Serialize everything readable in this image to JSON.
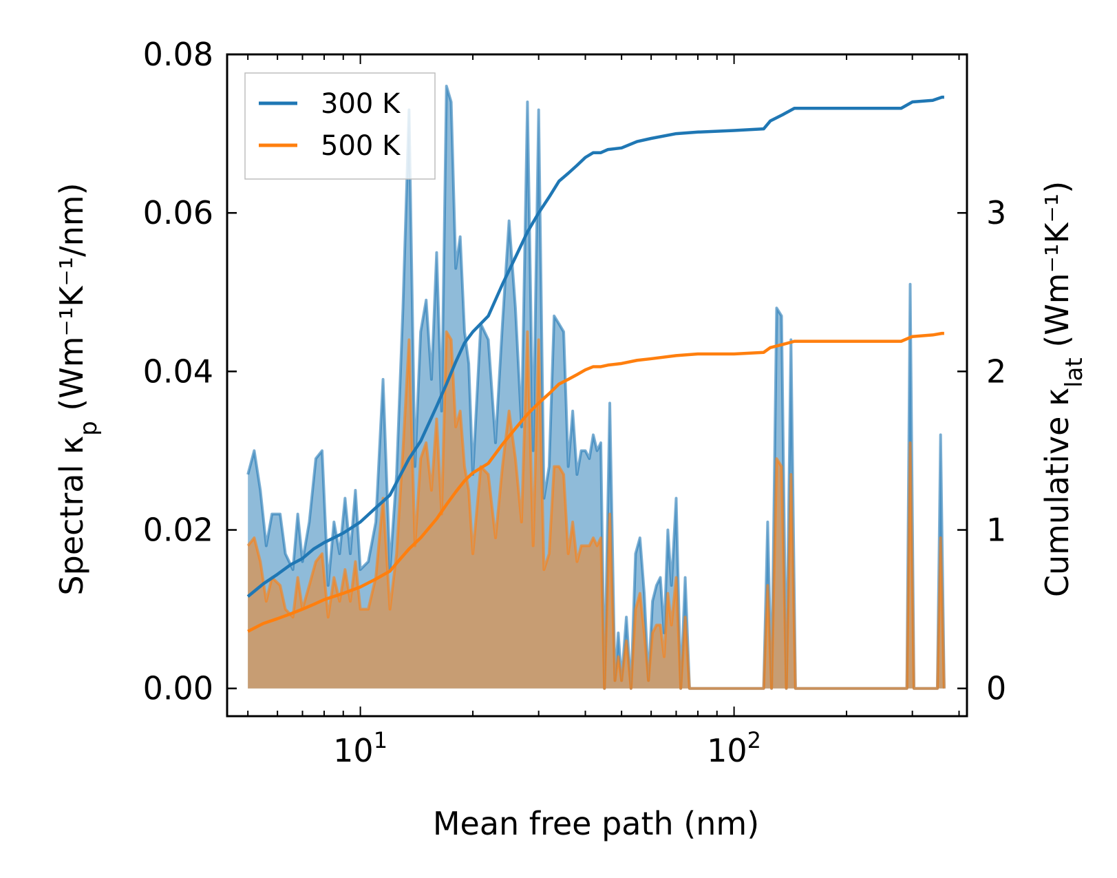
{
  "chart_data": {
    "type": "line",
    "xscale": "log",
    "xlabel": "Mean free path (nm)",
    "ylabel_left": {
      "prefix": "Spectral κ",
      "sub": "p",
      "suffix": " (Wm⁻¹K⁻¹/nm)"
    },
    "ylabel_right": {
      "prefix": "Cumulative κ",
      "sub": "lat",
      "suffix": " (Wm⁻¹K⁻¹)"
    },
    "xlim": [
      4.4,
      420
    ],
    "ylim_left": [
      -0.0035,
      0.08
    ],
    "ylim_right": [
      -0.175,
      4.0
    ],
    "xticks_major": [
      {
        "value": 10,
        "base": "10",
        "exp": "1"
      },
      {
        "value": 100,
        "base": "10",
        "exp": "2"
      }
    ],
    "yticks_left": [
      {
        "value": 0.0,
        "label": "0.00"
      },
      {
        "value": 0.02,
        "label": "0.02"
      },
      {
        "value": 0.04,
        "label": "0.04"
      },
      {
        "value": 0.06,
        "label": "0.06"
      },
      {
        "value": 0.08,
        "label": "0.08"
      }
    ],
    "yticks_right": [
      {
        "value": 0,
        "label": "0"
      },
      {
        "value": 1,
        "label": "1"
      },
      {
        "value": 2,
        "label": "2"
      },
      {
        "value": 3,
        "label": "3"
      }
    ],
    "legend": {
      "placement": "top-left",
      "entries": [
        "300 K",
        "500 K"
      ]
    },
    "colors": {
      "s300": "#1f77b4",
      "s500": "#ff7f0e",
      "fill300": "#1f77b4",
      "fill500": "#ff7f0e"
    },
    "spectral_series": [
      {
        "name": "300 K",
        "points": [
          [
            5.0,
            0.027
          ],
          [
            5.2,
            0.03
          ],
          [
            5.4,
            0.025
          ],
          [
            5.6,
            0.018
          ],
          [
            5.8,
            0.022
          ],
          [
            6.1,
            0.022
          ],
          [
            6.3,
            0.017
          ],
          [
            6.6,
            0.015
          ],
          [
            6.8,
            0.022
          ],
          [
            7.0,
            0.016
          ],
          [
            7.3,
            0.021
          ],
          [
            7.6,
            0.029
          ],
          [
            7.9,
            0.03
          ],
          [
            8.2,
            0.013
          ],
          [
            8.5,
            0.021
          ],
          [
            8.8,
            0.017
          ],
          [
            9.1,
            0.024
          ],
          [
            9.4,
            0.017
          ],
          [
            9.7,
            0.025
          ],
          [
            10.0,
            0.015
          ],
          [
            10.5,
            0.016
          ],
          [
            11.0,
            0.021
          ],
          [
            11.5,
            0.039
          ],
          [
            12.0,
            0.015
          ],
          [
            12.5,
            0.027
          ],
          [
            13.0,
            0.048
          ],
          [
            13.5,
            0.073
          ],
          [
            14.0,
            0.028
          ],
          [
            14.5,
            0.045
          ],
          [
            15.0,
            0.049
          ],
          [
            15.5,
            0.039
          ],
          [
            16.0,
            0.055
          ],
          [
            16.5,
            0.035
          ],
          [
            17.0,
            0.076
          ],
          [
            17.5,
            0.074
          ],
          [
            18.0,
            0.053
          ],
          [
            18.5,
            0.057
          ],
          [
            19.0,
            0.045
          ],
          [
            19.5,
            0.041
          ],
          [
            20.0,
            0.027
          ],
          [
            21.0,
            0.046
          ],
          [
            22.0,
            0.044
          ],
          [
            23.0,
            0.031
          ],
          [
            24.0,
            0.046
          ],
          [
            25.0,
            0.059
          ],
          [
            26.0,
            0.048
          ],
          [
            27.0,
            0.033
          ],
          [
            28.0,
            0.074
          ],
          [
            29.0,
            0.03
          ],
          [
            30.0,
            0.073
          ],
          [
            31.0,
            0.024
          ],
          [
            32.0,
            0.028
          ],
          [
            33.0,
            0.047
          ],
          [
            34.0,
            0.046
          ],
          [
            35.0,
            0.045
          ],
          [
            36.0,
            0.028
          ],
          [
            37.0,
            0.035
          ],
          [
            38.0,
            0.027
          ],
          [
            39.0,
            0.03
          ],
          [
            40.0,
            0.03
          ],
          [
            41.0,
            0.029
          ],
          [
            42.0,
            0.032
          ],
          [
            43.0,
            0.03
          ],
          [
            44.0,
            0.031
          ],
          [
            45.0,
            0.0
          ],
          [
            46.5,
            0.036
          ],
          [
            48.0,
            0.001
          ],
          [
            49.0,
            0.007
          ],
          [
            50.0,
            0.001
          ],
          [
            51.5,
            0.009
          ],
          [
            53.0,
            0.0
          ],
          [
            54.5,
            0.017
          ],
          [
            56.0,
            0.019
          ],
          [
            57.5,
            0.012
          ],
          [
            59.0,
            0.001
          ],
          [
            60.5,
            0.011
          ],
          [
            62.0,
            0.013
          ],
          [
            63.5,
            0.014
          ],
          [
            65.0,
            0.007
          ],
          [
            66.5,
            0.02
          ],
          [
            68.0,
            0.013
          ],
          [
            70.0,
            0.024
          ],
          [
            72.0,
            0.0
          ],
          [
            74.0,
            0.014
          ],
          [
            76.0,
            0.0
          ],
          [
            120.0,
            0.0
          ],
          [
            123.0,
            0.021
          ],
          [
            126.0,
            0.0
          ],
          [
            130.0,
            0.048
          ],
          [
            134.0,
            0.047
          ],
          [
            138.0,
            0.0
          ],
          [
            142.0,
            0.044
          ],
          [
            146.0,
            0.0
          ],
          [
            290.0,
            0.0
          ],
          [
            296.0,
            0.051
          ],
          [
            303.0,
            0.0
          ],
          [
            350.0,
            0.0
          ],
          [
            357.0,
            0.032
          ],
          [
            365.0,
            0.0
          ]
        ]
      },
      {
        "name": "500 K",
        "points": [
          [
            5.0,
            0.018
          ],
          [
            5.2,
            0.019
          ],
          [
            5.4,
            0.016
          ],
          [
            5.6,
            0.011
          ],
          [
            5.8,
            0.014
          ],
          [
            6.1,
            0.013
          ],
          [
            6.3,
            0.01
          ],
          [
            6.6,
            0.009
          ],
          [
            6.8,
            0.014
          ],
          [
            7.0,
            0.01
          ],
          [
            7.3,
            0.013
          ],
          [
            7.6,
            0.016
          ],
          [
            7.9,
            0.017
          ],
          [
            8.2,
            0.009
          ],
          [
            8.5,
            0.014
          ],
          [
            8.8,
            0.011
          ],
          [
            9.1,
            0.015
          ],
          [
            9.4,
            0.011
          ],
          [
            9.7,
            0.016
          ],
          [
            10.0,
            0.01
          ],
          [
            10.5,
            0.01
          ],
          [
            11.0,
            0.014
          ],
          [
            11.5,
            0.024
          ],
          [
            12.0,
            0.01
          ],
          [
            12.5,
            0.017
          ],
          [
            13.0,
            0.03
          ],
          [
            13.5,
            0.044
          ],
          [
            14.0,
            0.018
          ],
          [
            14.5,
            0.029
          ],
          [
            15.0,
            0.031
          ],
          [
            15.5,
            0.025
          ],
          [
            16.0,
            0.034
          ],
          [
            16.5,
            0.022
          ],
          [
            17.0,
            0.045
          ],
          [
            17.5,
            0.044
          ],
          [
            18.0,
            0.033
          ],
          [
            18.5,
            0.035
          ],
          [
            19.0,
            0.028
          ],
          [
            19.5,
            0.025
          ],
          [
            20.0,
            0.017
          ],
          [
            21.0,
            0.028
          ],
          [
            22.0,
            0.027
          ],
          [
            23.0,
            0.019
          ],
          [
            24.0,
            0.028
          ],
          [
            25.0,
            0.035
          ],
          [
            26.0,
            0.029
          ],
          [
            27.0,
            0.021
          ],
          [
            28.0,
            0.045
          ],
          [
            29.0,
            0.018
          ],
          [
            30.0,
            0.044
          ],
          [
            31.0,
            0.015
          ],
          [
            32.0,
            0.017
          ],
          [
            33.0,
            0.028
          ],
          [
            34.0,
            0.028
          ],
          [
            35.0,
            0.027
          ],
          [
            36.0,
            0.017
          ],
          [
            37.0,
            0.021
          ],
          [
            38.0,
            0.016
          ],
          [
            39.0,
            0.018
          ],
          [
            40.0,
            0.018
          ],
          [
            41.0,
            0.018
          ],
          [
            42.0,
            0.019
          ],
          [
            43.0,
            0.018
          ],
          [
            44.0,
            0.019
          ],
          [
            45.0,
            0.0
          ],
          [
            46.5,
            0.022
          ],
          [
            48.0,
            0.001
          ],
          [
            49.0,
            0.004
          ],
          [
            50.0,
            0.001
          ],
          [
            51.5,
            0.006
          ],
          [
            53.0,
            0.0
          ],
          [
            54.5,
            0.01
          ],
          [
            56.0,
            0.012
          ],
          [
            57.5,
            0.007
          ],
          [
            59.0,
            0.001
          ],
          [
            60.5,
            0.007
          ],
          [
            62.0,
            0.008
          ],
          [
            63.5,
            0.008
          ],
          [
            65.0,
            0.004
          ],
          [
            66.5,
            0.012
          ],
          [
            68.0,
            0.008
          ],
          [
            70.0,
            0.014
          ],
          [
            72.0,
            0.0
          ],
          [
            74.0,
            0.009
          ],
          [
            76.0,
            0.0
          ],
          [
            120.0,
            0.0
          ],
          [
            123.0,
            0.013
          ],
          [
            126.0,
            0.0
          ],
          [
            130.0,
            0.029
          ],
          [
            134.0,
            0.028
          ],
          [
            138.0,
            0.0
          ],
          [
            142.0,
            0.027
          ],
          [
            146.0,
            0.0
          ],
          [
            290.0,
            0.0
          ],
          [
            296.0,
            0.031
          ],
          [
            303.0,
            0.0
          ],
          [
            350.0,
            0.0
          ],
          [
            357.0,
            0.019
          ],
          [
            365.0,
            0.0
          ]
        ]
      }
    ],
    "cumulative_series": [
      {
        "name": "300 K",
        "points": [
          [
            5.0,
            0.58
          ],
          [
            5.5,
            0.66
          ],
          [
            6.0,
            0.72
          ],
          [
            6.5,
            0.78
          ],
          [
            7.0,
            0.82
          ],
          [
            7.5,
            0.88
          ],
          [
            8.0,
            0.92
          ],
          [
            9.0,
            0.98
          ],
          [
            10.0,
            1.05
          ],
          [
            11.0,
            1.14
          ],
          [
            12.0,
            1.22
          ],
          [
            12.5,
            1.3
          ],
          [
            13.5,
            1.45
          ],
          [
            14.5,
            1.56
          ],
          [
            16.0,
            1.78
          ],
          [
            17.0,
            1.92
          ],
          [
            18.0,
            2.06
          ],
          [
            19.0,
            2.18
          ],
          [
            20.0,
            2.25
          ],
          [
            22.0,
            2.35
          ],
          [
            24.0,
            2.55
          ],
          [
            26.0,
            2.72
          ],
          [
            28.0,
            2.88
          ],
          [
            30.0,
            3.0
          ],
          [
            32.0,
            3.1
          ],
          [
            34.0,
            3.2
          ],
          [
            36.0,
            3.25
          ],
          [
            38.0,
            3.3
          ],
          [
            40.0,
            3.35
          ],
          [
            42.0,
            3.38
          ],
          [
            44.0,
            3.38
          ],
          [
            46.0,
            3.4
          ],
          [
            50.0,
            3.41
          ],
          [
            55.0,
            3.45
          ],
          [
            60.0,
            3.47
          ],
          [
            70.0,
            3.5
          ],
          [
            80.0,
            3.51
          ],
          [
            100.0,
            3.52
          ],
          [
            120.0,
            3.53
          ],
          [
            125.0,
            3.58
          ],
          [
            135.0,
            3.62
          ],
          [
            145.0,
            3.66
          ],
          [
            280.0,
            3.66
          ],
          [
            300.0,
            3.7
          ],
          [
            340.0,
            3.71
          ],
          [
            360.0,
            3.73
          ],
          [
            365.0,
            3.73
          ]
        ]
      },
      {
        "name": "500 K",
        "points": [
          [
            5.0,
            0.36
          ],
          [
            5.5,
            0.41
          ],
          [
            6.0,
            0.44
          ],
          [
            6.5,
            0.47
          ],
          [
            7.0,
            0.5
          ],
          [
            7.5,
            0.53
          ],
          [
            8.0,
            0.56
          ],
          [
            9.0,
            0.6
          ],
          [
            10.0,
            0.64
          ],
          [
            11.0,
            0.69
          ],
          [
            12.0,
            0.74
          ],
          [
            12.5,
            0.79
          ],
          [
            13.5,
            0.88
          ],
          [
            14.5,
            0.95
          ],
          [
            16.0,
            1.07
          ],
          [
            17.0,
            1.16
          ],
          [
            18.0,
            1.24
          ],
          [
            19.0,
            1.31
          ],
          [
            20.0,
            1.36
          ],
          [
            22.0,
            1.42
          ],
          [
            24.0,
            1.54
          ],
          [
            26.0,
            1.64
          ],
          [
            28.0,
            1.73
          ],
          [
            30.0,
            1.8
          ],
          [
            32.0,
            1.86
          ],
          [
            34.0,
            1.92
          ],
          [
            36.0,
            1.95
          ],
          [
            38.0,
            1.98
          ],
          [
            40.0,
            2.01
          ],
          [
            42.0,
            2.03
          ],
          [
            44.0,
            2.03
          ],
          [
            46.0,
            2.04
          ],
          [
            50.0,
            2.05
          ],
          [
            55.0,
            2.07
          ],
          [
            60.0,
            2.08
          ],
          [
            70.0,
            2.1
          ],
          [
            80.0,
            2.11
          ],
          [
            100.0,
            2.11
          ],
          [
            120.0,
            2.12
          ],
          [
            125.0,
            2.15
          ],
          [
            135.0,
            2.17
          ],
          [
            145.0,
            2.19
          ],
          [
            280.0,
            2.19
          ],
          [
            300.0,
            2.22
          ],
          [
            340.0,
            2.23
          ],
          [
            360.0,
            2.24
          ],
          [
            365.0,
            2.24
          ]
        ]
      }
    ]
  }
}
